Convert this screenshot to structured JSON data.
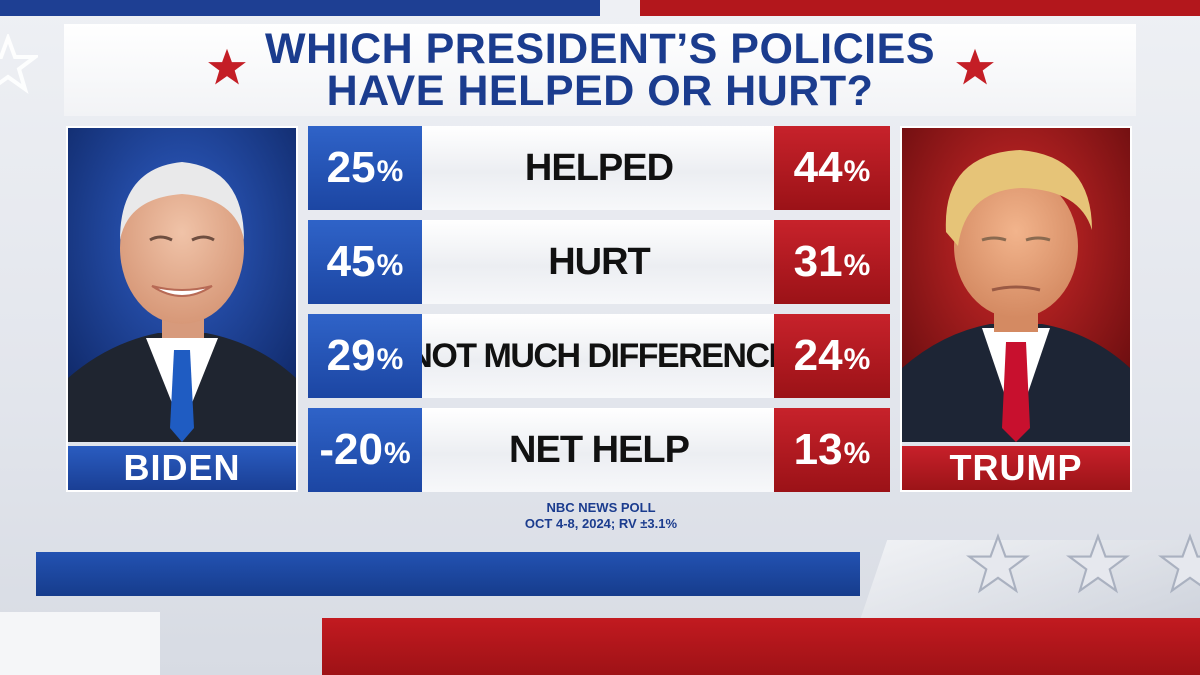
{
  "title": {
    "line1": "WHICH PRESIDENT’S POLICIES",
    "line2": "HAVE HELPED OR HURT?"
  },
  "candidates": {
    "left": {
      "name": "BIDEN",
      "color": "#1f4aa8"
    },
    "right": {
      "name": "TRUMP",
      "color": "#b3171c"
    }
  },
  "rows": [
    {
      "label": "HELPED",
      "biden": "25",
      "trump": "44"
    },
    {
      "label": "HURT",
      "biden": "45",
      "trump": "31"
    },
    {
      "label": "NOT MUCH DIFFERENCE",
      "biden": "29",
      "trump": "24"
    },
    {
      "label": "NET HELP",
      "biden": "-20",
      "trump": "13"
    }
  ],
  "percent_sign": "%",
  "source": {
    "line1": "NBC NEWS POLL",
    "line2": "OCT 4-8, 2024; RV ±3.1%"
  }
}
